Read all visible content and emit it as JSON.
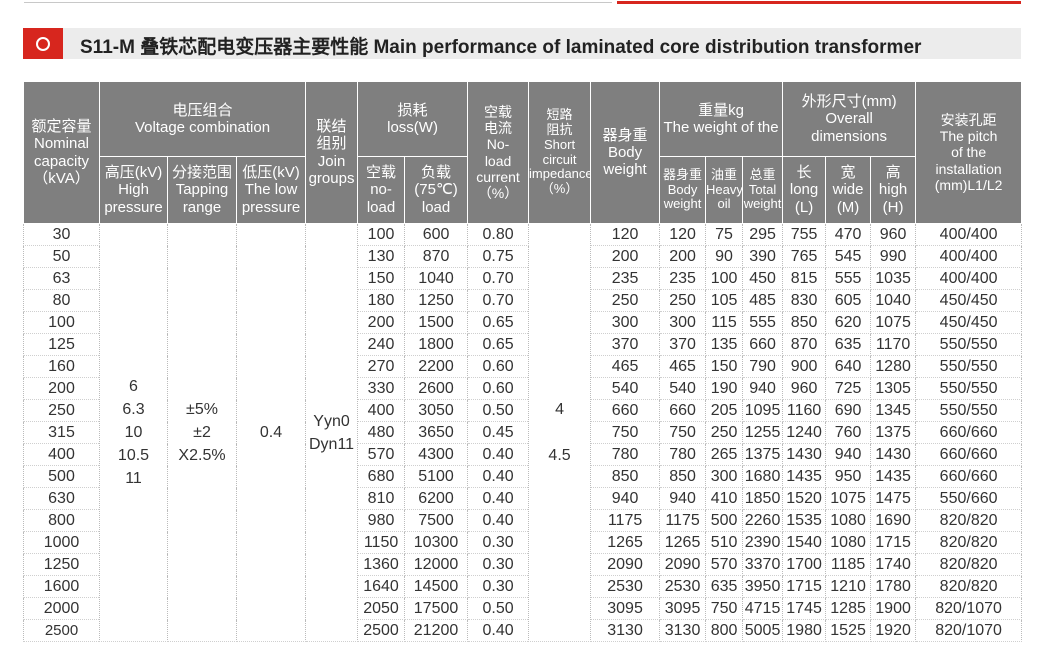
{
  "title": "S11-M 叠铁芯配电变压器主要性能 Main performance of laminated core distribution transformer",
  "headers": {
    "capacity": [
      "额定容量",
      "Nominal",
      "capacity",
      "（kVA）"
    ],
    "voltage": [
      "电压组合",
      "Voltage combination"
    ],
    "hv": [
      "高压(kV)",
      "High",
      "pressure"
    ],
    "tap": [
      "分接范围",
      "Tapping",
      "range"
    ],
    "lv": [
      "低压(kV)",
      "The low",
      "pressure"
    ],
    "join": [
      "联结",
      "组别",
      "Join",
      "groups"
    ],
    "loss": [
      "损耗",
      "loss(W)"
    ],
    "noload_loss": [
      "空载",
      "no-",
      "load"
    ],
    "load_loss": [
      "负载",
      "(75℃)",
      "load"
    ],
    "current": [
      "空载",
      "电流",
      "No-",
      "load",
      "current",
      "（%）"
    ],
    "impedance": [
      "短路",
      "阻抗",
      "Short",
      "circuit",
      "impedance",
      "（%）"
    ],
    "body": [
      "器身重",
      "Body",
      "weight"
    ],
    "weight": [
      "重量kg",
      "The weight of the"
    ],
    "w_body": [
      "器身重",
      "Body",
      "weight"
    ],
    "w_oil": [
      "油重",
      "Heavy",
      "oil"
    ],
    "w_total": [
      "总重",
      "Total",
      "weight"
    ],
    "dims": [
      "外形尺寸(mm)",
      "Overall",
      "dimensions"
    ],
    "d_long": [
      "长",
      "long",
      "(L)"
    ],
    "d_wide": [
      "宽",
      "wide",
      "(M)"
    ],
    "d_high": [
      "高",
      "high",
      "(H)"
    ],
    "pitch": [
      "安装孔距",
      "The pitch",
      "of the",
      "installation",
      "(mm)L1/L2"
    ]
  },
  "merged": {
    "hv": [
      "6",
      "6.3",
      "10",
      "10.5",
      "11"
    ],
    "tap": [
      "±5%",
      "±2",
      "X2.5%"
    ],
    "lv": "0.4",
    "join": [
      "Yyn0",
      "Dyn11"
    ],
    "impedance": [
      "4",
      "",
      "4.5"
    ]
  },
  "rows": [
    {
      "cap": "30",
      "nl": "100",
      "ll": "600",
      "cur": "0.80",
      "body": "120",
      "wb": "120",
      "oil": "75",
      "total": "295",
      "l": "755",
      "w": "470",
      "h": "960",
      "pitch": "400/400"
    },
    {
      "cap": "50",
      "nl": "130",
      "ll": "870",
      "cur": "0.75",
      "body": "200",
      "wb": "200",
      "oil": "90",
      "total": "390",
      "l": "765",
      "w": "545",
      "h": "990",
      "pitch": "400/400"
    },
    {
      "cap": "63",
      "nl": "150",
      "ll": "1040",
      "cur": "0.70",
      "body": "235",
      "wb": "235",
      "oil": "100",
      "total": "450",
      "l": "815",
      "w": "555",
      "h": "1035",
      "pitch": "400/400"
    },
    {
      "cap": "80",
      "nl": "180",
      "ll": "1250",
      "cur": "0.70",
      "body": "250",
      "wb": "250",
      "oil": "105",
      "total": "485",
      "l": "830",
      "w": "605",
      "h": "1040",
      "pitch": "450/450"
    },
    {
      "cap": "100",
      "nl": "200",
      "ll": "1500",
      "cur": "0.65",
      "body": "300",
      "wb": "300",
      "oil": "115",
      "total": "555",
      "l": "850",
      "w": "620",
      "h": "1075",
      "pitch": "450/450"
    },
    {
      "cap": "125",
      "nl": "240",
      "ll": "1800",
      "cur": "0.65",
      "body": "370",
      "wb": "370",
      "oil": "135",
      "total": "660",
      "l": "870",
      "w": "635",
      "h": "1170",
      "pitch": "550/550"
    },
    {
      "cap": "160",
      "nl": "270",
      "ll": "2200",
      "cur": "0.60",
      "body": "465",
      "wb": "465",
      "oil": "150",
      "total": "790",
      "l": "900",
      "w": "640",
      "h": "1280",
      "pitch": "550/550"
    },
    {
      "cap": "200",
      "nl": "330",
      "ll": "2600",
      "cur": "0.60",
      "body": "540",
      "wb": "540",
      "oil": "190",
      "total": "940",
      "l": "960",
      "w": "725",
      "h": "1305",
      "pitch": "550/550"
    },
    {
      "cap": "250",
      "nl": "400",
      "ll": "3050",
      "cur": "0.50",
      "body": "660",
      "wb": "660",
      "oil": "205",
      "total": "1095",
      "l": "1160",
      "w": "690",
      "h": "1345",
      "pitch": "550/550"
    },
    {
      "cap": "315",
      "nl": "480",
      "ll": "3650",
      "cur": "0.45",
      "body": "750",
      "wb": "750",
      "oil": "250",
      "total": "1255",
      "l": "1240",
      "w": "760",
      "h": "1375",
      "pitch": "660/660"
    },
    {
      "cap": "400",
      "nl": "570",
      "ll": "4300",
      "cur": "0.40",
      "body": "780",
      "wb": "780",
      "oil": "265",
      "total": "1375",
      "l": "1430",
      "w": "940",
      "h": "1430",
      "pitch": "660/660"
    },
    {
      "cap": "500",
      "nl": "680",
      "ll": "5100",
      "cur": "0.40",
      "body": "850",
      "wb": "850",
      "oil": "300",
      "total": "1680",
      "l": "1435",
      "w": "950",
      "h": "1435",
      "pitch": "660/660"
    },
    {
      "cap": "630",
      "nl": "810",
      "ll": "6200",
      "cur": "0.40",
      "body": "940",
      "wb": "940",
      "oil": "410",
      "total": "1850",
      "l": "1520",
      "w": "1075",
      "h": "1475",
      "pitch": "550/660"
    },
    {
      "cap": "800",
      "nl": "980",
      "ll": "7500",
      "cur": "0.40",
      "body": "1175",
      "wb": "1175",
      "oil": "500",
      "total": "2260",
      "l": "1535",
      "w": "1080",
      "h": "1690",
      "pitch": "820/820"
    },
    {
      "cap": "1000",
      "nl": "1150",
      "ll": "10300",
      "cur": "0.30",
      "body": "1265",
      "wb": "1265",
      "oil": "510",
      "total": "2390",
      "l": "1540",
      "w": "1080",
      "h": "1715",
      "pitch": "820/820"
    },
    {
      "cap": "1250",
      "nl": "1360",
      "ll": "12000",
      "cur": "0.30",
      "body": "2090",
      "wb": "2090",
      "oil": "570",
      "total": "3370",
      "l": "1700",
      "w": "1185",
      "h": "1740",
      "pitch": "820/820"
    },
    {
      "cap": "1600",
      "nl": "1640",
      "ll": "14500",
      "cur": "0.30",
      "body": "2530",
      "wb": "2530",
      "oil": "635",
      "total": "3950",
      "l": "1715",
      "w": "1210",
      "h": "1780",
      "pitch": "820/820"
    },
    {
      "cap": "2000",
      "nl": "2050",
      "ll": "17500",
      "cur": "0.50",
      "body": "3095",
      "wb": "3095",
      "oil": "750",
      "total": "4715",
      "l": "1745",
      "w": "1285",
      "h": "1900",
      "pitch": "820/1070"
    },
    {
      "cap": "2500",
      "nl": "2500",
      "ll": "21200",
      "cur": "0.40",
      "body": "3130",
      "wb": "3130",
      "oil": "800",
      "total": "5005",
      "l": "1980",
      "w": "1525",
      "h": "1920",
      "pitch": "820/1070"
    }
  ]
}
